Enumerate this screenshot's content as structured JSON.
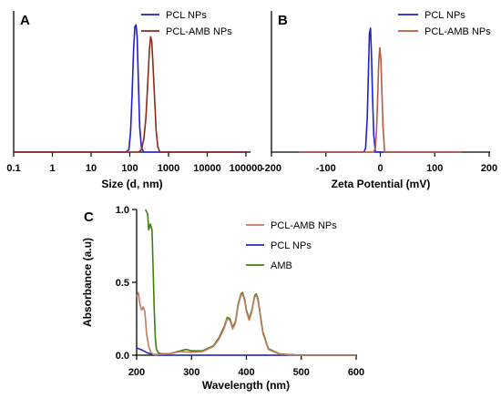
{
  "chart_data": [
    {
      "panel": "A",
      "type": "line",
      "xlabel": "Size (d, nm)",
      "xscale": "log",
      "xlim": [
        0.1,
        100000
      ],
      "xticks": [
        "0.1",
        "1",
        "10",
        "100",
        "1000",
        "10000",
        "100000"
      ],
      "ylim": [
        0,
        16
      ],
      "legend": "top-right",
      "series": [
        {
          "name": "PCL NPs",
          "color": "#1f1fd0",
          "x": [
            0.1,
            80,
            95,
            105,
            115,
            125,
            135,
            145,
            155,
            165,
            180,
            200,
            230,
            100000
          ],
          "y": [
            0,
            0,
            0.3,
            2.5,
            7,
            12,
            14.8,
            15,
            13.5,
            9,
            3,
            0.5,
            0,
            0
          ]
        },
        {
          "name": "PCL-AMB NPs",
          "color": "#8b2a1a",
          "x": [
            0.1,
            170,
            200,
            230,
            260,
            290,
            320,
            345,
            370,
            400,
            440,
            480,
            530,
            600,
            100000
          ],
          "y": [
            0,
            0,
            0.3,
            1.5,
            4,
            8,
            12,
            13.6,
            13,
            10,
            6,
            2.5,
            0.6,
            0,
            0
          ]
        }
      ]
    },
    {
      "panel": "B",
      "type": "line",
      "xlabel": "Zeta Potential (mV)",
      "xlim": [
        -200,
        200
      ],
      "xticks": [
        "-200",
        "-100",
        "0",
        "100",
        "200"
      ],
      "ylim": [
        0,
        16
      ],
      "legend": "top-right",
      "series": [
        {
          "name": "PCL NPs",
          "color": "#1f1fd0",
          "x": [
            -150,
            -30,
            -27,
            -24,
            -22,
            -20,
            -18,
            -16,
            -14,
            -12,
            -9,
            150
          ],
          "y": [
            0,
            0,
            0.5,
            4,
            9,
            14,
            14.6,
            11,
            6,
            2,
            0,
            0
          ]
        },
        {
          "name": "PCL-AMB NPs",
          "color": "#b85a40",
          "x": [
            -150,
            -12,
            -9,
            -7,
            -5,
            -3,
            -1,
            1,
            3,
            5,
            8,
            150
          ],
          "y": [
            0,
            0,
            0.5,
            2.5,
            6,
            10.5,
            12.3,
            11,
            7,
            3,
            0,
            0
          ]
        }
      ]
    },
    {
      "panel": "C",
      "type": "line",
      "xlabel": "Wavelength (nm)",
      "ylabel": "Absorbance (a.u)",
      "xlim": [
        200,
        600
      ],
      "ylim": [
        0,
        1.0
      ],
      "xticks": [
        "200",
        "300",
        "400",
        "500",
        "600"
      ],
      "yticks": [
        "0.0",
        "0.5",
        "1.0"
      ],
      "legend": "top-right",
      "series": [
        {
          "name": "PCL-AMB NPs",
          "color": "#c07a5e",
          "x": [
            200,
            203,
            206,
            209,
            212,
            215,
            218,
            222,
            226,
            230,
            240,
            260,
            280,
            300,
            320,
            340,
            350,
            360,
            365,
            370,
            375,
            380,
            385,
            390,
            393,
            397,
            400,
            405,
            410,
            415,
            418,
            421,
            425,
            430,
            440,
            460,
            480,
            500,
            600
          ],
          "y": [
            0.4,
            0.43,
            0.35,
            0.31,
            0.33,
            0.3,
            0.15,
            0.06,
            0.02,
            0.005,
            0.005,
            0.01,
            0.025,
            0.02,
            0.025,
            0.06,
            0.11,
            0.19,
            0.25,
            0.24,
            0.18,
            0.22,
            0.34,
            0.41,
            0.42,
            0.37,
            0.3,
            0.24,
            0.3,
            0.4,
            0.41,
            0.38,
            0.28,
            0.15,
            0.04,
            0.008,
            0.003,
            0,
            0
          ]
        },
        {
          "name": "PCL NPs",
          "color": "#2828c8",
          "x": [
            200,
            210,
            220,
            230,
            240,
            260,
            600
          ],
          "y": [
            0.05,
            0.035,
            0.015,
            0.005,
            0,
            0,
            0
          ]
        },
        {
          "name": "AMB",
          "color": "#3f7f10",
          "x": [
            216,
            220,
            222,
            225,
            228,
            230,
            232,
            234,
            236,
            240,
            245,
            250,
            260,
            280,
            290,
            300,
            320,
            340,
            350,
            360,
            365,
            370,
            375,
            380,
            385,
            390,
            393,
            397,
            400,
            405,
            410,
            415,
            418,
            421,
            425,
            430,
            440,
            460,
            480,
            500,
            600
          ],
          "y": [
            1.0,
            0.97,
            0.86,
            0.9,
            0.86,
            0.6,
            0.32,
            0.12,
            0.04,
            0.015,
            0.01,
            0.01,
            0.01,
            0.03,
            0.04,
            0.03,
            0.03,
            0.065,
            0.12,
            0.2,
            0.26,
            0.25,
            0.19,
            0.23,
            0.35,
            0.42,
            0.43,
            0.38,
            0.31,
            0.25,
            0.31,
            0.41,
            0.42,
            0.39,
            0.29,
            0.16,
            0.045,
            0.01,
            0.004,
            0,
            0
          ]
        }
      ]
    }
  ]
}
